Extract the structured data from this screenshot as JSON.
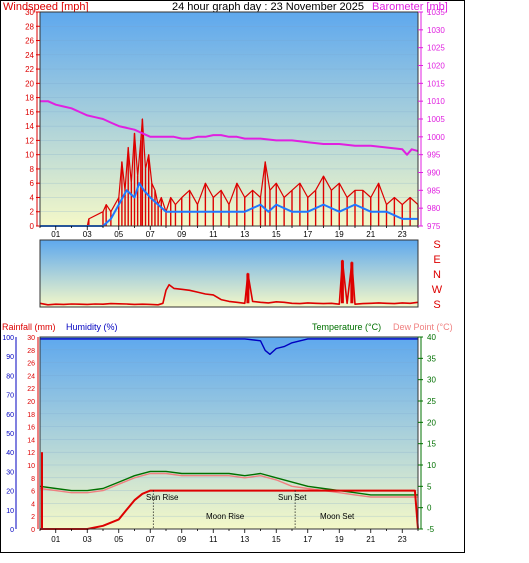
{
  "header": {
    "title": "24 hour graph day : 23 November 2025",
    "left_label": "Windspeed [mph]",
    "right_label": "Barometer [mb]"
  },
  "x_hours": [
    "01",
    "03",
    "05",
    "07",
    "09",
    "11",
    "13",
    "15",
    "17",
    "19",
    "21",
    "23"
  ],
  "colors": {
    "wind": "#dd0000",
    "gust_line": "#dd0000",
    "avg_wind": "#1f78ff",
    "barometer": "#e020e0",
    "direction": "#dd0000",
    "humidity": "#0000c0",
    "temperature": "#007000",
    "dewpoint": "#f08080",
    "rain": "#dd0000",
    "sky_top": "#5ea8ee",
    "sky_bottom": "#f4f8c8"
  },
  "chart_data": [
    {
      "type": "line",
      "ylabel": "Windspeed [mph]",
      "y2label": "Barometer [mb]",
      "ylim": [
        0,
        30
      ],
      "y2lim": [
        975,
        1035
      ],
      "y_ticks": [
        0,
        2,
        4,
        6,
        8,
        10,
        12,
        14,
        16,
        18,
        20,
        22,
        24,
        26,
        28,
        30
      ],
      "y2_ticks": [
        975,
        980,
        985,
        990,
        995,
        1000,
        1005,
        1010,
        1015,
        1020,
        1025,
        1030,
        1035
      ],
      "x_ticks": [
        "01",
        "03",
        "05",
        "07",
        "09",
        "11",
        "13",
        "15",
        "17",
        "19",
        "21",
        "23"
      ],
      "series": [
        {
          "kind": "wind_gust",
          "x": [
            0,
            3,
            3.1,
            4,
            4.2,
            4.5,
            5,
            5.2,
            5.4,
            5.6,
            5.8,
            6,
            6.2,
            6.4,
            6.5,
            6.7,
            6.9,
            7.1,
            7.3,
            7.5,
            7.7,
            8,
            8.3,
            8.6,
            9,
            9.5,
            10,
            10.5,
            11,
            11.5,
            12,
            12.5,
            13,
            13.5,
            14,
            14.3,
            14.6,
            15,
            15.5,
            16,
            16.5,
            17,
            17.5,
            18,
            18.5,
            19,
            19.5,
            20,
            20.5,
            21,
            21.5,
            22,
            22.5,
            23,
            23.5,
            24
          ],
          "values": [
            0,
            0,
            1,
            2,
            3,
            2,
            4,
            9,
            5,
            11,
            6,
            13,
            7,
            12,
            15,
            8,
            10,
            6,
            5,
            3,
            4,
            2,
            4,
            3,
            4,
            5,
            3,
            6,
            4,
            5,
            3,
            6,
            4,
            5,
            4,
            9,
            5,
            6,
            4,
            5,
            6,
            4,
            5,
            7,
            5,
            6,
            4,
            5,
            5,
            4,
            6,
            3,
            4,
            3,
            4,
            3
          ]
        },
        {
          "kind": "wind_avg",
          "x": [
            0,
            4,
            4.5,
            5,
            5.5,
            6,
            6.3,
            6.6,
            7,
            7.5,
            8,
            8.5,
            9,
            10,
            11,
            12,
            13,
            14,
            14.5,
            15,
            16,
            17,
            18,
            19,
            20,
            21,
            22,
            23,
            23.5,
            24
          ],
          "values": [
            0,
            0,
            1,
            3,
            5,
            4,
            6,
            5,
            4,
            3,
            2,
            2,
            2,
            2,
            2,
            2,
            2,
            3,
            2,
            3,
            2,
            2,
            3,
            2,
            3,
            2,
            2,
            1,
            1,
            1
          ]
        },
        {
          "kind": "barometer",
          "x": [
            0,
            0.5,
            1,
            1.5,
            2,
            2.5,
            3,
            3.5,
            4,
            4.5,
            5,
            5.5,
            6,
            6.5,
            7,
            7.5,
            8,
            8.5,
            9,
            9.5,
            10,
            10.5,
            11,
            11.5,
            12,
            12.5,
            13,
            13.5,
            14,
            15,
            16,
            17,
            18,
            19,
            20,
            21,
            22,
            23,
            23.3,
            23.6,
            24
          ],
          "values": [
            1010,
            1010,
            1009,
            1008.5,
            1008,
            1007,
            1006,
            1005.5,
            1005,
            1004,
            1003,
            1002.5,
            1002,
            1001,
            1000,
            1000,
            1000,
            1000,
            999.5,
            999.5,
            1000,
            1000,
            1000.5,
            1000.5,
            1000,
            1000,
            999.5,
            999.5,
            999.5,
            999,
            999,
            998.5,
            998,
            998,
            997.5,
            997.5,
            997,
            996.5,
            995,
            996.5,
            996
          ]
        }
      ]
    },
    {
      "type": "line",
      "ylabel": "Wind direction",
      "direction_labels": [
        "S",
        "E",
        "N",
        "W",
        "S"
      ],
      "ylim": [
        0,
        360
      ],
      "series": [
        {
          "kind": "direction",
          "x": [
            0,
            0.5,
            1,
            1.5,
            2,
            2.5,
            3,
            3.5,
            4,
            4.5,
            5,
            5.5,
            6,
            6.5,
            7,
            7.5,
            7.8,
            8,
            8.2,
            8.5,
            9,
            9.5,
            10,
            10.5,
            11,
            11.5,
            12,
            12.5,
            13,
            13.2,
            13.5,
            14,
            14.5,
            15,
            15.5,
            16,
            16.5,
            17,
            17.5,
            18,
            18.5,
            19,
            19.2,
            19.5,
            19.8,
            20,
            20.5,
            21,
            21.5,
            22,
            22.5,
            23,
            23.5,
            24
          ],
          "values": [
            20,
            12,
            15,
            14,
            16,
            15,
            14,
            16,
            15,
            18,
            17,
            16,
            14,
            15,
            14,
            12,
            20,
            90,
            120,
            100,
            95,
            90,
            80,
            70,
            65,
            40,
            30,
            25,
            20,
            180,
            30,
            25,
            22,
            28,
            25,
            20,
            18,
            22,
            20,
            18,
            20,
            15,
            250,
            20,
            240,
            15,
            18,
            20,
            22,
            20,
            18,
            22,
            20,
            25
          ]
        }
      ]
    },
    {
      "type": "line",
      "ylabel": "Rainfall (mm) / Humidity (%)",
      "y2label": "Temperature (°C) / Dew Point (°C)",
      "rain_label": "Rainfall (mm)",
      "humidity_label": "Humidity (%)",
      "temperature_label": "Temperature (°C)",
      "dewpoint_label": "Dew Point (°C)",
      "rain_ylim": [
        0,
        30
      ],
      "humidity_ylim": [
        0,
        100
      ],
      "temp_ylim": [
        -5,
        40
      ],
      "rain_ticks": [
        0,
        2,
        4,
        6,
        8,
        10,
        12,
        14,
        16,
        18,
        20,
        22,
        24,
        26,
        28,
        30
      ],
      "humidity_ticks": [
        0,
        10,
        20,
        30,
        40,
        50,
        60,
        70,
        80,
        90,
        100
      ],
      "temp_ticks": [
        -5,
        0,
        5,
        10,
        15,
        20,
        25,
        30,
        35,
        40
      ],
      "annotations": {
        "sun_rise": "Sun Rise",
        "sun_set": "Sun Set",
        "moon_rise": "Moon Rise",
        "moon_set": "Moon Set",
        "sun_rise_hour": 7.2,
        "sun_set_hour": 16.2
      },
      "series": [
        {
          "kind": "humidity",
          "x": [
            0,
            2,
            4,
            6,
            8,
            10,
            12,
            13,
            14,
            14.3,
            14.6,
            15,
            15.5,
            16,
            17,
            18,
            20,
            22,
            24
          ],
          "values": [
            99,
            99,
            99,
            99,
            99,
            99,
            99,
            99,
            98,
            93,
            91,
            94,
            95,
            97,
            99,
            99,
            99,
            99,
            99
          ]
        },
        {
          "kind": "temperature",
          "x": [
            0,
            1,
            2,
            3,
            4,
            5,
            6,
            7,
            8,
            9,
            10,
            11,
            12,
            13,
            14,
            15,
            16,
            17,
            18,
            19,
            20,
            21,
            22,
            23,
            24
          ],
          "values": [
            5,
            4.5,
            4,
            4,
            4.5,
            6,
            7.5,
            8.5,
            8.5,
            8,
            8,
            8,
            8,
            7.5,
            8,
            7,
            6,
            5,
            4.5,
            4,
            3.5,
            3,
            3,
            3,
            3
          ]
        },
        {
          "kind": "dewpoint",
          "x": [
            0,
            1,
            2,
            3,
            4,
            5,
            6,
            7,
            8,
            9,
            10,
            11,
            12,
            13,
            14,
            15,
            16,
            17,
            18,
            19,
            20,
            21,
            22,
            23,
            24
          ],
          "values": [
            4.5,
            4,
            3.5,
            3.5,
            4,
            5.5,
            7,
            8,
            8,
            7.5,
            7.5,
            7.5,
            7.5,
            7,
            7.5,
            6.5,
            5,
            4.5,
            4,
            3.5,
            3,
            2.5,
            2.5,
            2.5,
            2.5
          ]
        },
        {
          "kind": "rain",
          "x": [
            0,
            3,
            4,
            5,
            5.5,
            6,
            6.5,
            7,
            8,
            9,
            12,
            16,
            20,
            23.8,
            24
          ],
          "values": [
            0,
            0,
            0.5,
            1.5,
            3,
            4.5,
            5.5,
            6,
            6,
            6,
            6,
            6,
            6,
            6,
            0
          ]
        }
      ]
    }
  ]
}
